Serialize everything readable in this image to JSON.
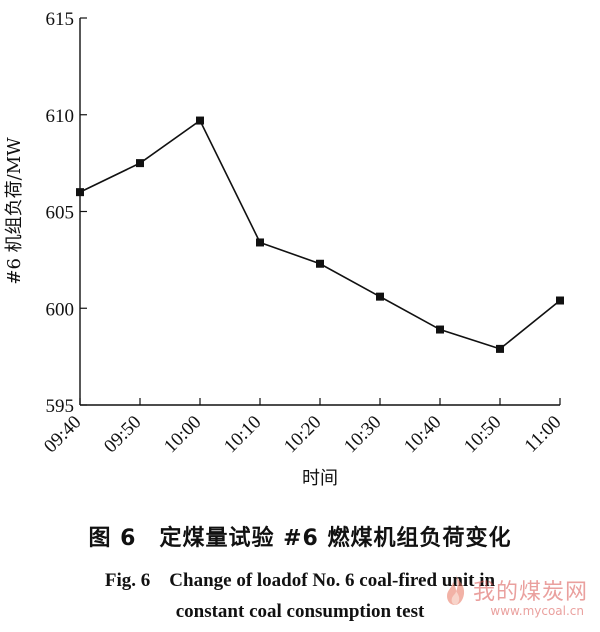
{
  "chart_data": {
    "type": "line",
    "categories": [
      "09:40",
      "09:50",
      "10:00",
      "10:10",
      "10:20",
      "10:30",
      "10:40",
      "10:50",
      "11:00"
    ],
    "series": [
      {
        "values": [
          606.0,
          607.5,
          609.7,
          603.4,
          602.3,
          600.6,
          598.9,
          597.9,
          600.4
        ]
      }
    ],
    "ylim": [
      595,
      615
    ],
    "yticks": [
      595,
      600,
      605,
      610,
      615
    ],
    "xlabel": "时间",
    "ylabel": "#6 机组负荷/MW",
    "marker": "square",
    "grid": false
  },
  "caption": {
    "cn": "图 6　定煤量试验 #6 燃煤机组负荷变化",
    "en_line1": "Fig. 6　Change of loadof No. 6 coal-fired unit in",
    "en_line2": "constant coal consumption test"
  },
  "watermark": {
    "text": "我的煤炭网",
    "url": "www.mycoal.cn",
    "icon": "flame-icon",
    "color": "#d9534f"
  }
}
